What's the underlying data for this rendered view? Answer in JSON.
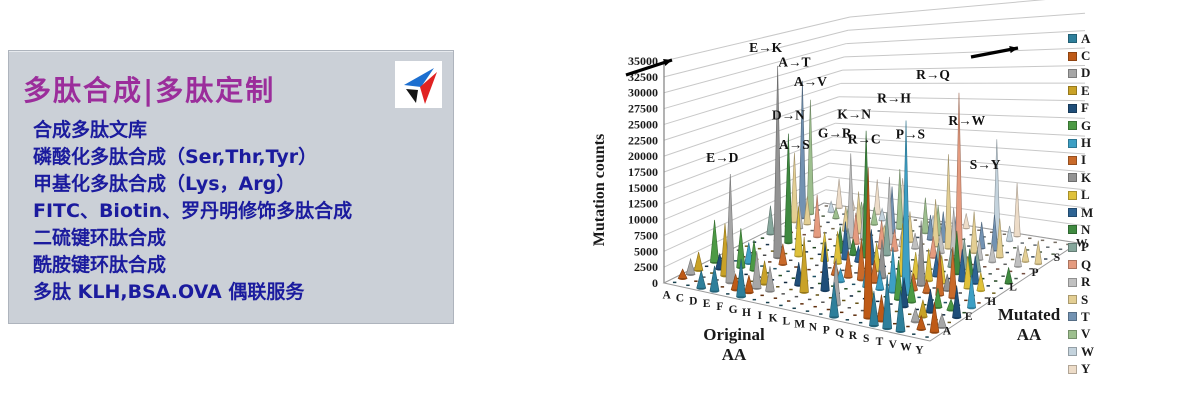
{
  "page": {
    "background": "#ffffff"
  },
  "promo_panel": {
    "title": "多肽合成|多肽定制",
    "title_color": "#9B2D9B",
    "text_color": "#1B1B9E",
    "background": "#CBD0D7",
    "services": [
      "合成多肽文库",
      "磷酸化多肽合成（Ser,Thr,Tyr）",
      "甲基化多肽合成（Lys，Arg）",
      "FITC、Biotin、罗丹明修饰多肽合成",
      "二硫键环肽合成",
      "酰胺键环肽合成",
      "多肽 KLH,BSA.OVA 偶联服务"
    ],
    "logo_colors": {
      "blue": "#1C6FD0",
      "black": "#141414",
      "red": "#E02222"
    }
  },
  "chart_data": {
    "type": "bar",
    "subtype": "3d-cone",
    "title": "",
    "ylabel": "Mutation counts",
    "xlabel": "Original AA",
    "zlabel": "Mutated AA",
    "ylim": [
      0,
      35000
    ],
    "ytick_step": 2500,
    "yticks": [
      0,
      2500,
      5000,
      7500,
      10000,
      12500,
      15000,
      17500,
      20000,
      22500,
      25000,
      27500,
      30000,
      32500,
      35000
    ],
    "x_categories": [
      "A",
      "C",
      "D",
      "E",
      "F",
      "G",
      "H",
      "I",
      "K",
      "L",
      "M",
      "N",
      "P",
      "Q",
      "R",
      "S",
      "T",
      "V",
      "W",
      "Y"
    ],
    "z_categories": [
      "A",
      "C",
      "D",
      "E",
      "F",
      "G",
      "H",
      "I",
      "K",
      "L",
      "M",
      "N",
      "P",
      "Q",
      "R",
      "S",
      "T",
      "V",
      "W",
      "Y"
    ],
    "z_axis_shown_labels": [
      "A",
      "E",
      "H",
      "L",
      "P",
      "S",
      "W"
    ],
    "grid": true,
    "legend_position": "right",
    "cones": [
      [
        "A",
        "C",
        1500
      ],
      [
        "A",
        "D",
        2500
      ],
      [
        "A",
        "E",
        3000
      ],
      [
        "A",
        "G",
        7000
      ],
      [
        "A",
        "P",
        5000
      ],
      [
        "A",
        "S",
        12500
      ],
      [
        "A",
        "T",
        25000
      ],
      [
        "A",
        "V",
        21000
      ],
      [
        "C",
        "F",
        2500
      ],
      [
        "C",
        "G",
        3000
      ],
      [
        "C",
        "R",
        4500
      ],
      [
        "C",
        "S",
        5000
      ],
      [
        "C",
        "W",
        2000
      ],
      [
        "C",
        "Y",
        5500
      ],
      [
        "D",
        "A",
        2800
      ],
      [
        "D",
        "E",
        8500
      ],
      [
        "D",
        "G",
        6500
      ],
      [
        "D",
        "H",
        3500
      ],
      [
        "D",
        "N",
        19000
      ],
      [
        "D",
        "V",
        2000
      ],
      [
        "D",
        "Y",
        2800
      ],
      [
        "E",
        "A",
        4000
      ],
      [
        "E",
        "D",
        17500
      ],
      [
        "E",
        "G",
        5000
      ],
      [
        "E",
        "K",
        32500
      ],
      [
        "E",
        "Q",
        7500
      ],
      [
        "E",
        "V",
        2800
      ],
      [
        "F",
        "C",
        2500
      ],
      [
        "F",
        "I",
        3500
      ],
      [
        "F",
        "L",
        8500
      ],
      [
        "F",
        "S",
        4500
      ],
      [
        "F",
        "V",
        3800
      ],
      [
        "F",
        "Y",
        6500
      ],
      [
        "G",
        "A",
        6000
      ],
      [
        "G",
        "C",
        2800
      ],
      [
        "G",
        "D",
        6000
      ],
      [
        "G",
        "E",
        3800
      ],
      [
        "G",
        "R",
        15000
      ],
      [
        "G",
        "S",
        7500
      ],
      [
        "G",
        "V",
        3200
      ],
      [
        "G",
        "W",
        2200
      ],
      [
        "H",
        "D",
        4000
      ],
      [
        "H",
        "L",
        5000
      ],
      [
        "H",
        "N",
        4500
      ],
      [
        "H",
        "P",
        3500
      ],
      [
        "H",
        "Q",
        5500
      ],
      [
        "H",
        "R",
        6500
      ],
      [
        "H",
        "Y",
        7500
      ],
      [
        "I",
        "F",
        3800
      ],
      [
        "I",
        "L",
        5500
      ],
      [
        "I",
        "M",
        6500
      ],
      [
        "I",
        "N",
        2800
      ],
      [
        "I",
        "S",
        2200
      ],
      [
        "I",
        "T",
        8500
      ],
      [
        "I",
        "V",
        11000
      ],
      [
        "K",
        "E",
        9000
      ],
      [
        "K",
        "I",
        2200
      ],
      [
        "K",
        "M",
        2800
      ],
      [
        "K",
        "N",
        22000
      ],
      [
        "K",
        "Q",
        5000
      ],
      [
        "K",
        "R",
        12000
      ],
      [
        "K",
        "T",
        5500
      ],
      [
        "L",
        "F",
        8000
      ],
      [
        "L",
        "H",
        2200
      ],
      [
        "L",
        "I",
        4500
      ],
      [
        "L",
        "M",
        6000
      ],
      [
        "L",
        "P",
        7500
      ],
      [
        "L",
        "Q",
        3800
      ],
      [
        "L",
        "R",
        3200
      ],
      [
        "L",
        "S",
        5500
      ],
      [
        "L",
        "V",
        6500
      ],
      [
        "L",
        "W",
        2500
      ],
      [
        "M",
        "I",
        7000
      ],
      [
        "M",
        "K",
        3800
      ],
      [
        "M",
        "L",
        4800
      ],
      [
        "M",
        "R",
        2800
      ],
      [
        "M",
        "T",
        4500
      ],
      [
        "M",
        "V",
        5500
      ],
      [
        "N",
        "D",
        7500
      ],
      [
        "N",
        "H",
        4500
      ],
      [
        "N",
        "I",
        3800
      ],
      [
        "N",
        "K",
        6500
      ],
      [
        "N",
        "S",
        8500
      ],
      [
        "N",
        "T",
        5500
      ],
      [
        "N",
        "Y",
        2800
      ],
      [
        "P",
        "A",
        5500
      ],
      [
        "P",
        "H",
        3200
      ],
      [
        "P",
        "L",
        9000
      ],
      [
        "P",
        "Q",
        3800
      ],
      [
        "P",
        "R",
        4200
      ],
      [
        "P",
        "S",
        17000
      ],
      [
        "P",
        "T",
        5000
      ],
      [
        "Q",
        "E",
        5000
      ],
      [
        "Q",
        "H",
        7500
      ],
      [
        "Q",
        "K",
        5500
      ],
      [
        "Q",
        "L",
        4500
      ],
      [
        "Q",
        "P",
        3800
      ],
      [
        "Q",
        "R",
        8500
      ],
      [
        "R",
        "C",
        24000
      ],
      [
        "R",
        "G",
        6500
      ],
      [
        "R",
        "H",
        29000
      ],
      [
        "R",
        "I",
        2800
      ],
      [
        "R",
        "K",
        11000
      ],
      [
        "R",
        "L",
        5500
      ],
      [
        "R",
        "M",
        3800
      ],
      [
        "R",
        "P",
        3200
      ],
      [
        "R",
        "Q",
        30000
      ],
      [
        "R",
        "S",
        7500
      ],
      [
        "R",
        "T",
        4800
      ],
      [
        "R",
        "W",
        18500
      ],
      [
        "S",
        "A",
        5500
      ],
      [
        "S",
        "C",
        4200
      ],
      [
        "S",
        "F",
        4800
      ],
      [
        "S",
        "G",
        3800
      ],
      [
        "S",
        "I",
        2200
      ],
      [
        "S",
        "L",
        4800
      ],
      [
        "S",
        "N",
        7500
      ],
      [
        "S",
        "P",
        5500
      ],
      [
        "S",
        "R",
        3800
      ],
      [
        "S",
        "T",
        6500
      ],
      [
        "S",
        "W",
        2800
      ],
      [
        "S",
        "Y",
        10000
      ],
      [
        "T",
        "A",
        8500
      ],
      [
        "T",
        "I",
        7500
      ],
      [
        "T",
        "K",
        2800
      ],
      [
        "T",
        "M",
        5500
      ],
      [
        "T",
        "N",
        4800
      ],
      [
        "T",
        "P",
        3800
      ],
      [
        "T",
        "R",
        3200
      ],
      [
        "T",
        "S",
        7000
      ],
      [
        "V",
        "A",
        6500
      ],
      [
        "V",
        "D",
        2200
      ],
      [
        "V",
        "E",
        2800
      ],
      [
        "V",
        "F",
        3800
      ],
      [
        "V",
        "G",
        3200
      ],
      [
        "V",
        "I",
        8500
      ],
      [
        "V",
        "L",
        5500
      ],
      [
        "V",
        "M",
        4800
      ],
      [
        "W",
        "C",
        2200
      ],
      [
        "W",
        "G",
        1800
      ],
      [
        "W",
        "L",
        3200
      ],
      [
        "W",
        "R",
        3800
      ],
      [
        "W",
        "S",
        2800
      ],
      [
        "Y",
        "C",
        4800
      ],
      [
        "Y",
        "D",
        2200
      ],
      [
        "Y",
        "F",
        5200
      ],
      [
        "Y",
        "H",
        5500
      ],
      [
        "Y",
        "N",
        2800
      ],
      [
        "Y",
        "S",
        4200
      ]
    ],
    "annotations": [
      {
        "label": "E→K",
        "from": "E",
        "to": "K"
      },
      {
        "label": "A→T",
        "from": "A",
        "to": "T"
      },
      {
        "label": "A→V",
        "from": "A",
        "to": "V"
      },
      {
        "label": "D→N",
        "from": "D",
        "to": "N"
      },
      {
        "label": "A→S",
        "from": "A",
        "to": "S"
      },
      {
        "label": "E→D",
        "from": "E",
        "to": "D"
      },
      {
        "label": "G→R",
        "from": "G",
        "to": "R"
      },
      {
        "label": "K→N",
        "from": "K",
        "to": "N"
      },
      {
        "label": "R→C",
        "from": "R",
        "to": "C"
      },
      {
        "label": "R→H",
        "from": "R",
        "to": "H"
      },
      {
        "label": "R→Q",
        "from": "R",
        "to": "Q"
      },
      {
        "label": "P→S",
        "from": "P",
        "to": "S"
      },
      {
        "label": "R→W",
        "from": "R",
        "to": "W"
      },
      {
        "label": "S→Y",
        "from": "S",
        "to": "Y"
      }
    ]
  },
  "legend": {
    "entries": [
      {
        "label": "A",
        "color": "#2E7F9B"
      },
      {
        "label": "C",
        "color": "#BE5A17"
      },
      {
        "label": "D",
        "color": "#A6A6A6"
      },
      {
        "label": "E",
        "color": "#C9A227"
      },
      {
        "label": "F",
        "color": "#1F4E79"
      },
      {
        "label": "G",
        "color": "#4C9A44"
      },
      {
        "label": "H",
        "color": "#3D9FC4"
      },
      {
        "label": "I",
        "color": "#C96A2A"
      },
      {
        "label": "K",
        "color": "#939393"
      },
      {
        "label": "L",
        "color": "#DFC13A"
      },
      {
        "label": "M",
        "color": "#2E6393"
      },
      {
        "label": "N",
        "color": "#3F8A40"
      },
      {
        "label": "P",
        "color": "#86A79C"
      },
      {
        "label": "Q",
        "color": "#E59B7F"
      },
      {
        "label": "R",
        "color": "#C0C0C0"
      },
      {
        "label": "S",
        "color": "#E3CE93"
      },
      {
        "label": "T",
        "color": "#7292B2"
      },
      {
        "label": "V",
        "color": "#9DBF8E"
      },
      {
        "label": "W",
        "color": "#C4D3DD"
      },
      {
        "label": "Y",
        "color": "#EDDCC8"
      }
    ]
  }
}
